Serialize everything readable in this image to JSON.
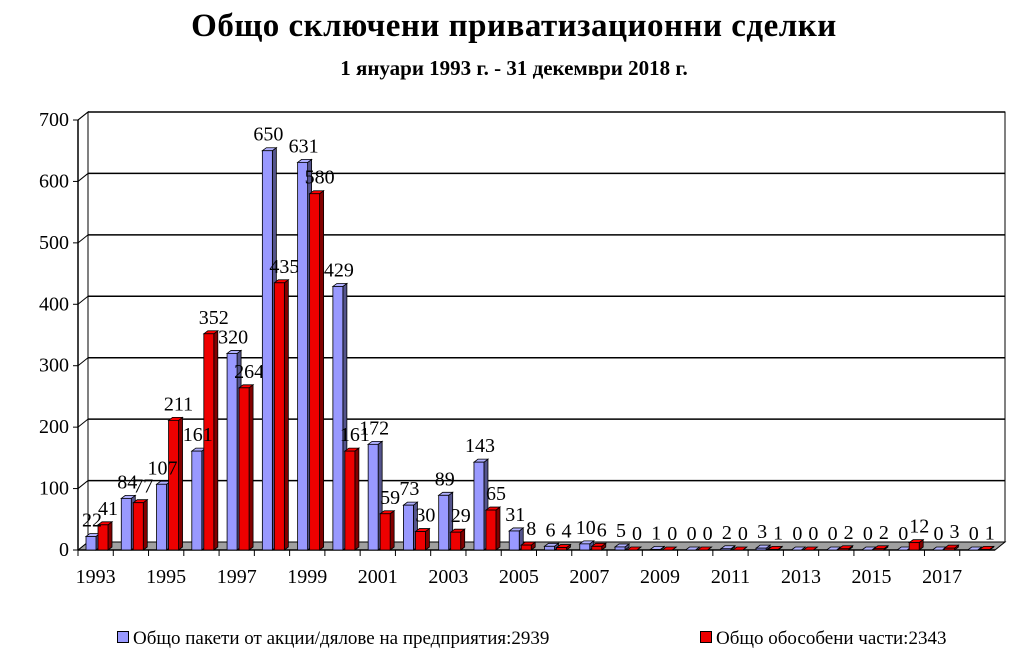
{
  "chart_data": {
    "type": "bar",
    "title": "Общо сключени приватизационни сделки",
    "subtitle": "1 януари 1993 г. - 31 декември 2018 г.",
    "categories": [
      "1993",
      "1994",
      "1995",
      "1996",
      "1997",
      "1998",
      "1999",
      "2000",
      "2001",
      "2002",
      "2003",
      "2004",
      "2005",
      "2006",
      "2007",
      "2008",
      "2009",
      "2010",
      "2011",
      "2012",
      "2013",
      "2014",
      "2015",
      "2016",
      "2017",
      "2018"
    ],
    "x_tick_labels": [
      "1993",
      "1995",
      "1997",
      "1999",
      "2001",
      "2003",
      "2005",
      "2007",
      "2009",
      "2011",
      "2013",
      "2015",
      "2017"
    ],
    "ylim": [
      0,
      700
    ],
    "y_ticks": [
      0,
      100,
      200,
      300,
      400,
      500,
      600,
      700
    ],
    "grid": true,
    "legend_position": "bottom",
    "series": [
      {
        "name": "Общо пакети от акции/дялове на предприятия:2939",
        "color": "#9999ff",
        "values": [
          22,
          84,
          107,
          161,
          320,
          650,
          631,
          429,
          172,
          73,
          89,
          143,
          31,
          6,
          10,
          5,
          1,
          0,
          2,
          3,
          0,
          0,
          0,
          0,
          0,
          0
        ]
      },
      {
        "name": "Общо обособени части:2343",
        "color": "#ee0000",
        "values": [
          41,
          77,
          211,
          352,
          264,
          435,
          580,
          161,
          59,
          30,
          29,
          65,
          8,
          4,
          6,
          0,
          0,
          0,
          0,
          1,
          0,
          2,
          2,
          12,
          3,
          1
        ]
      }
    ]
  }
}
